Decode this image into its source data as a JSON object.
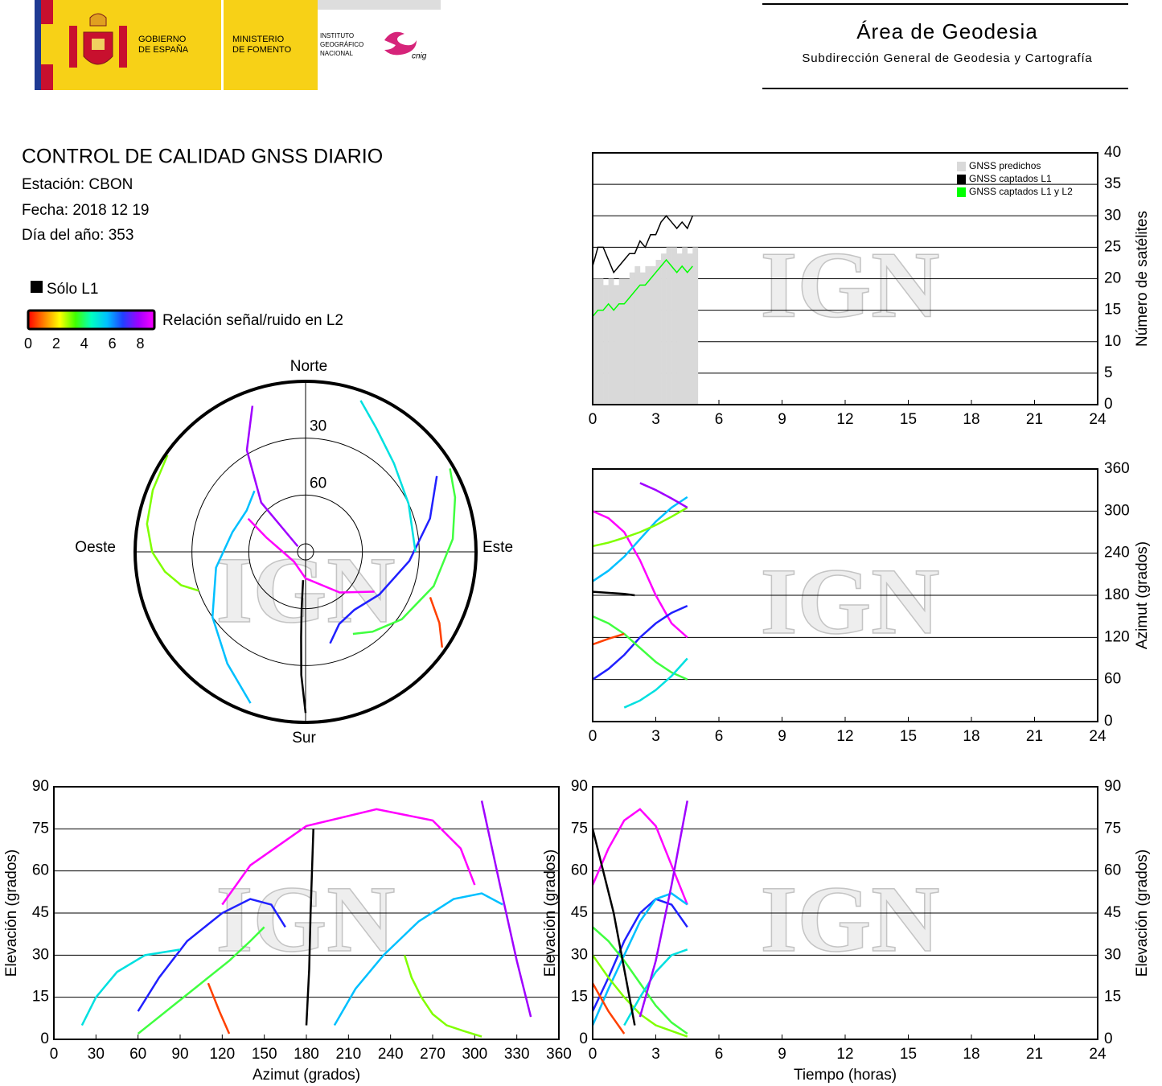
{
  "header": {
    "gov": [
      "GOBIERNO",
      "DE ESPAÑA"
    ],
    "ministry": [
      "MINISTERIO",
      "DE FOMENTO"
    ],
    "institute": [
      "INSTITUTO",
      "GEOGRÁFICO",
      "NACIONAL"
    ],
    "cnig": "cnig",
    "area": "Área de Geodesia",
    "subdirection": "Subdirección General de Geodesia y Cartografía"
  },
  "report": {
    "title": "CONTROL DE CALIDAD GNSS DIARIO",
    "station": "Estación: CBON",
    "date": "Fecha: 2018 12 19",
    "doy": "Día del año: 353"
  },
  "legend": {
    "l1_only": "Sólo L1",
    "l1_color": "#000000",
    "snr_label": "Relación señal/ruido en L2",
    "snr_ticks": [
      0,
      2,
      4,
      6,
      8
    ],
    "snr_lim": [
      0,
      9
    ],
    "snr_colors": [
      "#ff0000",
      "#ff8000",
      "#ffff00",
      "#40ff00",
      "#00ffc0",
      "#00c0ff",
      "#2040ff",
      "#a000ff",
      "#ff00ff"
    ]
  },
  "watermark": "IGN",
  "chart_data": [
    {
      "type": "line",
      "x": [
        0,
        0.25,
        0.5,
        0.75,
        1,
        1.25,
        1.5,
        1.75,
        2,
        2.25,
        2.5,
        2.75,
        3,
        3.25,
        3.5,
        3.75,
        4,
        4.25,
        4.5,
        4.75
      ],
      "series": [
        {
          "name": "GNSS predichos",
          "color": "#d9d9d9",
          "kind": "bar",
          "values": [
            20,
            20,
            19,
            20,
            19,
            20,
            20,
            21,
            22,
            21,
            22,
            22,
            23,
            24,
            25,
            25,
            24,
            25,
            24,
            25
          ]
        },
        {
          "name": "GNSS captados L1",
          "color": "#000000",
          "kind": "line",
          "values": [
            22,
            25,
            25,
            23,
            21,
            22,
            23,
            24,
            24,
            26,
            25,
            27,
            27,
            29,
            30,
            29,
            28,
            29,
            28,
            30
          ]
        },
        {
          "name": "GNSS captados L1 y L2",
          "color": "#00ff00",
          "kind": "line",
          "values": [
            14,
            15,
            15,
            16,
            15,
            16,
            16,
            17,
            18,
            19,
            19,
            20,
            21,
            22,
            23,
            22,
            21,
            22,
            21,
            22
          ]
        }
      ],
      "xlim": [
        0,
        24
      ],
      "xticks": [
        0,
        3,
        6,
        9,
        12,
        15,
        18,
        21,
        24
      ],
      "ylim": [
        0,
        40
      ],
      "yticks": [
        0,
        5,
        10,
        15,
        20,
        25,
        30,
        35,
        40
      ],
      "ylabel": "Número de satélites",
      "yaxis_side": "right",
      "grid": true,
      "legend": "upper right"
    },
    {
      "type": "line",
      "series": [
        {
          "color": "#ff00ff",
          "x": [
            0,
            0.75,
            1.5,
            2.25,
            3,
            3.75,
            4.5
          ],
          "values": [
            300,
            290,
            270,
            230,
            180,
            140,
            120
          ]
        },
        {
          "color": "#2020ff",
          "x": [
            0,
            0.75,
            1.5,
            2.25,
            3,
            3.75,
            4.5
          ],
          "values": [
            60,
            75,
            95,
            120,
            140,
            155,
            165
          ]
        },
        {
          "color": "#00c0ff",
          "x": [
            0,
            0.75,
            1.5,
            2.25,
            3,
            3.75,
            4.5
          ],
          "values": [
            200,
            215,
            235,
            260,
            285,
            305,
            320
          ]
        },
        {
          "color": "#40ff40",
          "x": [
            0,
            0.75,
            1.5,
            2.25,
            3,
            3.75,
            4.5
          ],
          "values": [
            150,
            140,
            125,
            105,
            85,
            70,
            60
          ]
        },
        {
          "color": "#80ff00",
          "x": [
            0,
            0.75,
            1.5,
            2.25,
            3,
            3.75,
            4.5
          ],
          "values": [
            250,
            255,
            262,
            270,
            280,
            292,
            305
          ]
        },
        {
          "color": "#00e0e0",
          "x": [
            1.5,
            2.25,
            3,
            3.75,
            4.5
          ],
          "values": [
            20,
            30,
            45,
            65,
            90
          ]
        },
        {
          "color": "#000000",
          "x": [
            0,
            0.5,
            1,
            1.5,
            2
          ],
          "values": [
            185,
            184,
            183,
            182,
            180
          ]
        },
        {
          "color": "#a000ff",
          "x": [
            2.25,
            3,
            3.75,
            4.5
          ],
          "values": [
            340,
            330,
            318,
            305
          ]
        },
        {
          "color": "#ff4000",
          "x": [
            0,
            0.75,
            1.5
          ],
          "values": [
            110,
            118,
            125
          ]
        }
      ],
      "xlim": [
        0,
        24
      ],
      "xticks": [
        0,
        3,
        6,
        9,
        12,
        15,
        18,
        21,
        24
      ],
      "ylim": [
        0,
        360
      ],
      "yticks": [
        0,
        60,
        120,
        180,
        240,
        300,
        360
      ],
      "ylabel": "Azimut (grados)",
      "yaxis_side": "right",
      "grid": true
    },
    {
      "type": "polar",
      "cardinals": {
        "north": "Norte",
        "south": "Sur",
        "east": "Este",
        "west": "Oeste"
      },
      "rlim": [
        0,
        90
      ],
      "rticks": [
        30,
        60
      ],
      "series": [
        {
          "color": "#ff00ff",
          "az": [
            300,
            290,
            270,
            230,
            180,
            140,
            120
          ],
          "el": [
            55,
            68,
            78,
            82,
            76,
            62,
            48
          ]
        },
        {
          "color": "#2020ff",
          "az": [
            60,
            75,
            95,
            120,
            140,
            155,
            165
          ],
          "el": [
            10,
            22,
            35,
            45,
            50,
            48,
            40
          ]
        },
        {
          "color": "#00c0ff",
          "az": [
            200,
            215,
            235,
            260,
            285,
            305,
            320
          ],
          "el": [
            5,
            18,
            30,
            42,
            50,
            52,
            48
          ]
        },
        {
          "color": "#40ff40",
          "az": [
            150,
            140,
            125,
            105,
            85,
            70,
            60
          ],
          "el": [
            40,
            35,
            28,
            20,
            12,
            6,
            2
          ]
        },
        {
          "color": "#80ff00",
          "az": [
            250,
            255,
            262,
            270,
            280,
            292,
            305
          ],
          "el": [
            30,
            22,
            15,
            9,
            5,
            3,
            1
          ]
        },
        {
          "color": "#00e0e0",
          "az": [
            20,
            30,
            45,
            65,
            90
          ],
          "el": [
            5,
            15,
            24,
            30,
            32
          ]
        },
        {
          "color": "#000000",
          "az": [
            185,
            184,
            183,
            182,
            180
          ],
          "el": [
            75,
            60,
            45,
            25,
            5
          ]
        },
        {
          "color": "#a000ff",
          "az": [
            340,
            330,
            318,
            305
          ],
          "el": [
            8,
            28,
            55,
            85
          ]
        },
        {
          "color": "#ff4000",
          "az": [
            110,
            118,
            125
          ],
          "el": [
            20,
            10,
            2
          ]
        }
      ]
    },
    {
      "type": "line",
      "series": [
        {
          "color": "#ff00ff",
          "x": [
            300,
            290,
            270,
            230,
            180,
            140,
            120
          ],
          "values": [
            55,
            68,
            78,
            82,
            76,
            62,
            48
          ]
        },
        {
          "color": "#2020ff",
          "x": [
            60,
            75,
            95,
            120,
            140,
            155,
            165
          ],
          "values": [
            10,
            22,
            35,
            45,
            50,
            48,
            40
          ]
        },
        {
          "color": "#00c0ff",
          "x": [
            200,
            215,
            235,
            260,
            285,
            305,
            320
          ],
          "values": [
            5,
            18,
            30,
            42,
            50,
            52,
            48
          ]
        },
        {
          "color": "#40ff40",
          "x": [
            150,
            140,
            125,
            105,
            85,
            70,
            60
          ],
          "values": [
            40,
            35,
            28,
            20,
            12,
            6,
            2
          ]
        },
        {
          "color": "#80ff00",
          "x": [
            250,
            255,
            262,
            270,
            280,
            292,
            305
          ],
          "values": [
            30,
            22,
            15,
            9,
            5,
            3,
            1
          ]
        },
        {
          "color": "#00e0e0",
          "x": [
            20,
            30,
            45,
            65,
            90
          ],
          "values": [
            5,
            15,
            24,
            30,
            32
          ]
        },
        {
          "color": "#000000",
          "x": [
            185,
            184,
            183,
            182,
            180
          ],
          "values": [
            75,
            60,
            45,
            25,
            5
          ]
        },
        {
          "color": "#a000ff",
          "x": [
            340,
            330,
            318,
            305
          ],
          "values": [
            8,
            28,
            55,
            85
          ]
        },
        {
          "color": "#ff4000",
          "x": [
            110,
            118,
            125
          ],
          "values": [
            20,
            10,
            2
          ]
        }
      ],
      "xlim": [
        0,
        360
      ],
      "xticks": [
        0,
        30,
        60,
        90,
        120,
        150,
        180,
        210,
        240,
        270,
        300,
        330,
        360
      ],
      "ylim": [
        0,
        90
      ],
      "yticks": [
        0,
        15,
        30,
        45,
        60,
        75,
        90
      ],
      "xlabel": "Azimut (grados)",
      "ylabel": "Elevación (grados)",
      "yaxis_side": "left",
      "grid": true
    },
    {
      "type": "line",
      "series": [
        {
          "color": "#ff00ff",
          "x": [
            0,
            0.75,
            1.5,
            2.25,
            3,
            3.75,
            4.5
          ],
          "values": [
            55,
            68,
            78,
            82,
            76,
            62,
            48
          ]
        },
        {
          "color": "#2020ff",
          "x": [
            0,
            0.75,
            1.5,
            2.25,
            3,
            3.75,
            4.5
          ],
          "values": [
            10,
            22,
            35,
            45,
            50,
            48,
            40
          ]
        },
        {
          "color": "#00c0ff",
          "x": [
            0,
            0.75,
            1.5,
            2.25,
            3,
            3.75,
            4.5
          ],
          "values": [
            5,
            18,
            30,
            42,
            50,
            52,
            48
          ]
        },
        {
          "color": "#40ff40",
          "x": [
            0,
            0.75,
            1.5,
            2.25,
            3,
            3.75,
            4.5
          ],
          "values": [
            40,
            35,
            28,
            20,
            12,
            6,
            2
          ]
        },
        {
          "color": "#80ff00",
          "x": [
            0,
            0.75,
            1.5,
            2.25,
            3,
            3.75,
            4.5
          ],
          "values": [
            30,
            22,
            15,
            9,
            5,
            3,
            1
          ]
        },
        {
          "color": "#00e0e0",
          "x": [
            1.5,
            2.25,
            3,
            3.75,
            4.5
          ],
          "values": [
            5,
            15,
            24,
            30,
            32
          ]
        },
        {
          "color": "#000000",
          "x": [
            0,
            0.5,
            1,
            1.5,
            2
          ],
          "values": [
            75,
            60,
            45,
            25,
            5
          ]
        },
        {
          "color": "#a000ff",
          "x": [
            2.25,
            3,
            3.75,
            4.5
          ],
          "values": [
            8,
            28,
            55,
            85
          ]
        },
        {
          "color": "#ff4000",
          "x": [
            0,
            0.75,
            1.5
          ],
          "values": [
            20,
            10,
            2
          ]
        }
      ],
      "xlim": [
        0,
        24
      ],
      "xticks": [
        0,
        3,
        6,
        9,
        12,
        15,
        18,
        21,
        24
      ],
      "ylim": [
        0,
        90
      ],
      "yticks": [
        0,
        15,
        30,
        45,
        60,
        75,
        90
      ],
      "xlabel": "Tiempo (horas)",
      "ylabel": "Elevación (grados)",
      "yaxis_side": "both",
      "grid": true
    }
  ]
}
